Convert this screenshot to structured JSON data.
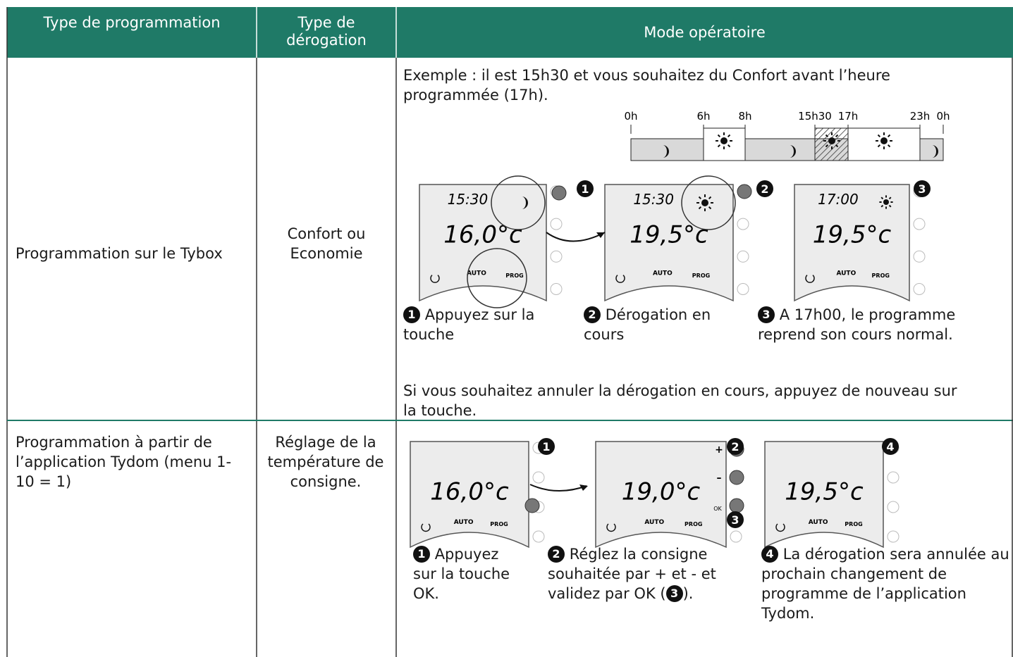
{
  "table": {
    "headers": [
      "Type de programmation",
      "Type de dérogation",
      "Mode opératoire"
    ],
    "rows": [
      {
        "programming": "Programmation sur le Tybox",
        "override": "Confort ou Economie",
        "intro": "Exemple : il est 15h30 et vous souhaitez du Confort avant l’heure programmée (17h).",
        "timeline": [
          "0h",
          "6h",
          "8h",
          "15h30",
          "17h",
          "23h",
          "0h"
        ],
        "screens": [
          {
            "time": "15:30",
            "temp": "16,0°c"
          },
          {
            "time": "15:30",
            "temp": "19,5°c"
          },
          {
            "time": "17:00",
            "temp": "19,5°c"
          }
        ],
        "steps": [
          {
            "number": "1",
            "text": "Appuyez sur la touche"
          },
          {
            "number": "2",
            "text": "Dérogation en cours"
          },
          {
            "number": "3",
            "text": "A 17h00, le programme reprend son cours normal."
          }
        ],
        "note": "Si vous souhaitez annuler la dérogation en cours, appuyez de nouveau sur la touche."
      },
      {
        "programming": "Programmation à partir de l’application Tydom (menu 1-10 = 1)",
        "override": "Réglage de la température de consigne.",
        "screens": [
          {
            "temp": "16,0°c"
          },
          {
            "temp": "19,0°c"
          },
          {
            "temp": "19,5°c"
          }
        ],
        "markers": [
          "1",
          "2",
          "3",
          "4"
        ],
        "buttons": [
          "+",
          "–",
          "OK"
        ],
        "steps": [
          {
            "number": "1",
            "text": "Appuyez sur la touche OK."
          },
          {
            "number": "2",
            "text": "Réglez la consigne souhaitée par + et - et validez par OK (",
            "ref": "3",
            "end": ")."
          },
          {
            "number": "4",
            "text": "La dérogation sera annulée au prochain changement de programme de  l’application Tydom."
          }
        ]
      }
    ],
    "device_labels": [
      "AUTO",
      "PROG"
    ]
  }
}
